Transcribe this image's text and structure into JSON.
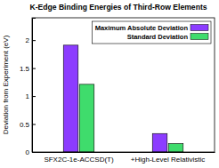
{
  "chart_data": {
    "type": "bar",
    "title": "K-Edge Binding Energies of Third-Row Elements",
    "y_label": "Deviation from Experiment (eV)",
    "categories": [
      "SFX2C-1e-ACCSD(T)",
      "+High-Level Relativistic"
    ],
    "series": [
      {
        "name": "Maximum Absolute Deviation",
        "color": "#8c3cff",
        "values": [
          1.91,
          0.33
        ]
      },
      {
        "name": "Standard Deviation",
        "color": "#3fdc6c",
        "values": [
          1.21,
          0.15
        ]
      }
    ],
    "ylim": [
      0,
      2.4
    ],
    "yticks": [
      0,
      0.5,
      1,
      1.5,
      2
    ],
    "legend": "top-right",
    "grid": false
  }
}
